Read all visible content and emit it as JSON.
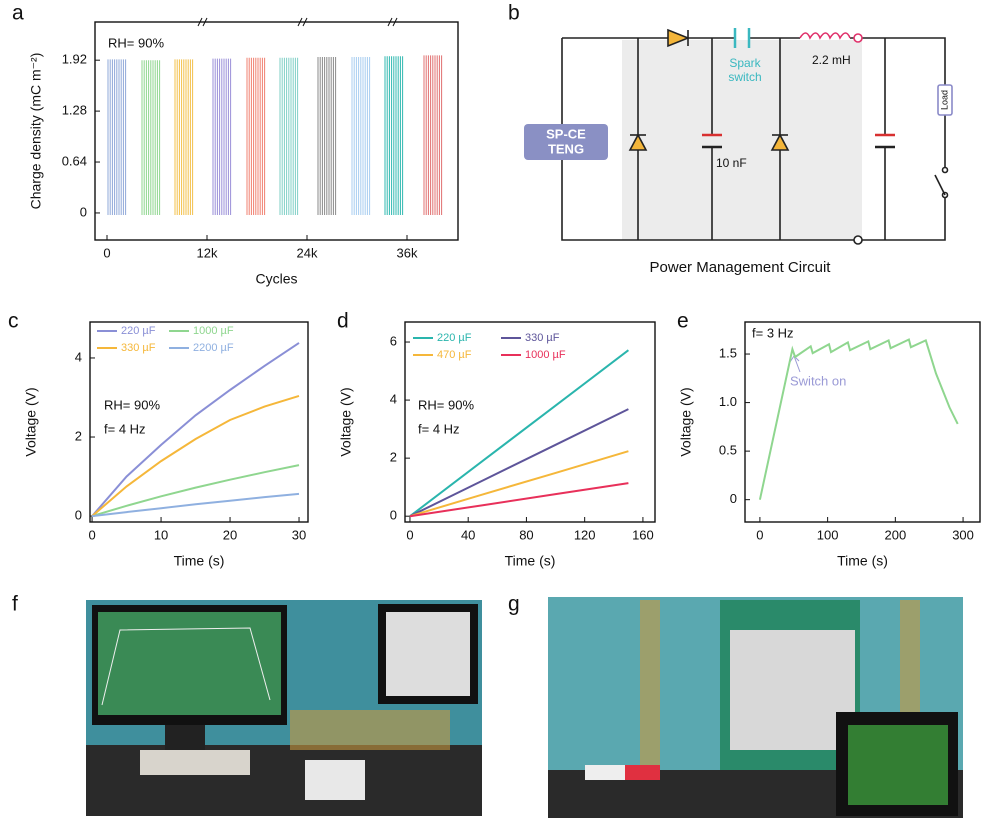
{
  "panel_labels": [
    "a",
    "b",
    "c",
    "d",
    "e",
    "f",
    "g"
  ],
  "circuit": {
    "source": [
      "SP-CE",
      "TENG"
    ],
    "switch": [
      "Spark",
      "switch"
    ],
    "inductor": "2.2 mH",
    "capacitor": "10 nF",
    "load": "Load",
    "caption": "Power Management Circuit"
  },
  "chart_data": [
    {
      "type": "burst",
      "ylabel": "Charge density (mC m⁻²)",
      "xlabel": "Cycles",
      "annotations": [
        "RH= 90%"
      ],
      "x": [
        1200,
        5280,
        9240,
        13800,
        17880,
        21840,
        26400,
        30480,
        34440,
        39120
      ],
      "values": [
        1.93,
        1.92,
        1.93,
        1.94,
        1.95,
        1.95,
        1.96,
        1.96,
        1.97,
        1.98
      ],
      "colors": [
        "#8fa8d8",
        "#8fd68f",
        "#f3c04a",
        "#9a8fd8",
        "#f08070",
        "#7fcfc6",
        "#8a8a8a",
        "#a8cdf0",
        "#30b8b0",
        "#e07070"
      ],
      "xlim": [
        -1440,
        42120
      ],
      "xticks": [
        0,
        {
          "value": 12000,
          "label": "12k"
        },
        {
          "value": 24000,
          "label": "24k"
        },
        {
          "value": 36000,
          "label": "36k"
        }
      ],
      "ylim": [
        -0.34,
        2.4
      ],
      "yticks": [
        0,
        0.64,
        1.28,
        1.92
      ]
    },
    {
      "type": "line",
      "ylabel": "Voltage (V)",
      "xlabel": "Time (s)",
      "annotations": [
        "RH= 90%",
        "f= 4 Hz"
      ],
      "x": [
        0,
        5,
        10,
        15,
        20,
        25,
        30
      ],
      "series": [
        {
          "name": "220 µF",
          "color": "#8a8fd6",
          "values": [
            0,
            1.0,
            1.8,
            2.55,
            3.19,
            3.8,
            4.38
          ]
        },
        {
          "name": "1000 µF",
          "color": "#8fd68f",
          "values": [
            0,
            0.26,
            0.5,
            0.72,
            0.92,
            1.11,
            1.29
          ]
        },
        {
          "name": "330 µF",
          "color": "#f5b73a",
          "values": [
            0,
            0.75,
            1.39,
            1.95,
            2.43,
            2.77,
            3.04
          ]
        },
        {
          "name": "2200 µF",
          "color": "#8fb0e0",
          "values": [
            0,
            0.1,
            0.2,
            0.3,
            0.39,
            0.48,
            0.56
          ]
        }
      ],
      "xlim": [
        -0.3,
        31.3
      ],
      "xticks": [
        0,
        10,
        20,
        30
      ],
      "ylim": [
        -0.15,
        4.91
      ],
      "yticks": [
        0,
        2,
        4
      ]
    },
    {
      "type": "line",
      "ylabel": "Voltage (V)",
      "xlabel": "Time (s)",
      "annotations": [
        "RH= 90%",
        "f= 4 Hz"
      ],
      "x": [
        0,
        50,
        100,
        150
      ],
      "series": [
        {
          "name": "220 µF",
          "color": "#2ab5ad",
          "values": [
            0,
            1.91,
            3.81,
            5.72
          ]
        },
        {
          "name": "330 µF",
          "color": "#5e559a",
          "values": [
            0,
            1.23,
            2.46,
            3.69
          ]
        },
        {
          "name": "470 µF",
          "color": "#f5b73a",
          "values": [
            0,
            0.75,
            1.49,
            2.24
          ]
        },
        {
          "name": "1000 µF",
          "color": "#e8305a",
          "values": [
            0,
            0.38,
            0.76,
            1.14
          ]
        }
      ],
      "xlim": [
        -3.4,
        168.3
      ],
      "xticks": [
        0,
        40,
        80,
        120,
        160
      ],
      "ylim": [
        -0.2,
        6.69
      ],
      "yticks": [
        0,
        2,
        4,
        6
      ]
    },
    {
      "type": "line",
      "ylabel": "Voltage (V)",
      "xlabel": "Time (s)",
      "annotations": [
        "f= 3 Hz",
        "Switch on"
      ],
      "x": [
        0,
        48,
        52,
        75,
        78,
        102,
        105,
        130,
        133,
        160,
        163,
        190,
        193,
        220,
        223,
        245,
        260,
        280,
        292
      ],
      "series": [
        {
          "color": "#8fd68f",
          "values": [
            0,
            1.55,
            1.47,
            1.58,
            1.51,
            1.6,
            1.52,
            1.62,
            1.54,
            1.63,
            1.55,
            1.64,
            1.56,
            1.65,
            1.57,
            1.64,
            1.3,
            0.95,
            0.78
          ]
        }
      ],
      "xlim": [
        -22,
        325
      ],
      "xticks": [
        0,
        100,
        200,
        300
      ],
      "ylim": [
        -0.23,
        1.83
      ],
      "yticks": [
        0,
        0.5,
        {
          "value": 1.0,
          "label": "1.0"
        },
        1.5
      ]
    }
  ]
}
